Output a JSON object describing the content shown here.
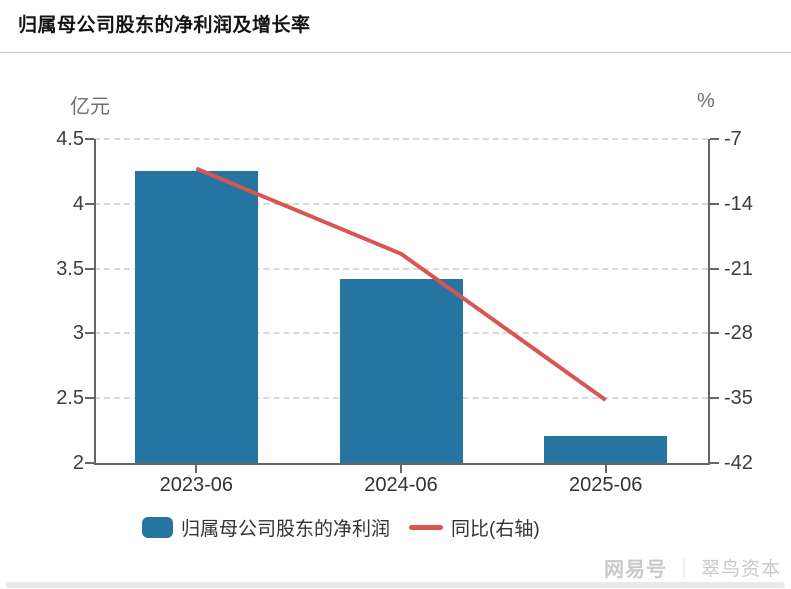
{
  "header": {
    "title": "归属母公司股东的净利润及增长率"
  },
  "chart_data": {
    "type": "bar",
    "subtype": "bar+line dual axis",
    "categories": [
      "2023-06",
      "2024-06",
      "2025-06"
    ],
    "series": [
      {
        "name": "归属母公司股东的净利润",
        "type": "bar",
        "axis": "left",
        "values": [
          4.25,
          3.42,
          2.21
        ],
        "color": "#2574A2"
      },
      {
        "name": "同比(右轴)",
        "type": "line",
        "axis": "right",
        "values": [
          -10.2,
          -19.4,
          -35.2
        ],
        "color": "#D95552"
      }
    ],
    "left_axis": {
      "label": "亿元",
      "ticks": [
        4.5,
        4,
        3.5,
        3,
        2.5,
        2
      ],
      "min": 2,
      "max": 4.5
    },
    "right_axis": {
      "label": "%",
      "ticks": [
        -7,
        -14,
        -21,
        -28,
        -35,
        -42
      ],
      "min": -42,
      "max": -7
    },
    "grid": "horizontal dashed",
    "legend_position": "bottom",
    "title": "归属母公司股东的净利润及增长率"
  },
  "legend": {
    "items": [
      {
        "label": "归属母公司股东的净利润",
        "swatch": "bar",
        "color": "#2574A2"
      },
      {
        "label": "同比(右轴)",
        "swatch": "line",
        "color": "#D95552"
      }
    ]
  },
  "watermark": {
    "brand": "网易号",
    "divider": "｜",
    "account": "翠鸟资本"
  },
  "colors": {
    "bar": "#2574A2",
    "line": "#D95552",
    "axis": "#666666",
    "gridline": "#d9d9d9",
    "tick_text": "#3d3d3d",
    "unit_text": "#6f6f6f",
    "watermark_text": "#c9c9c9"
  }
}
